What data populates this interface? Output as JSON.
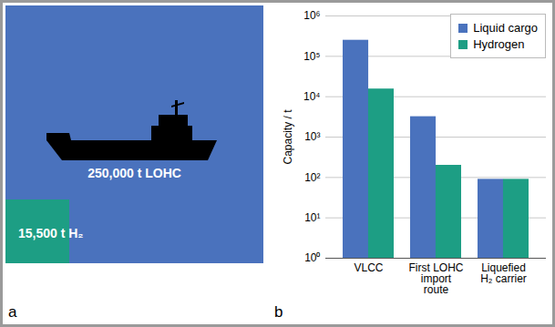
{
  "panel_a": {
    "panel_label": "a",
    "lohc": {
      "value": 250000,
      "label": "250,000 t LOHC",
      "color": "#4a72bd"
    },
    "hydrogen": {
      "value": 15500,
      "label": "15,500 t H₂",
      "color": "#1d9e84"
    }
  },
  "chart_data": {
    "type": "bar",
    "panel_label": "b",
    "categories": [
      "VLCC",
      "First LOHC import route",
      "Liquefied H₂ carrier"
    ],
    "series": [
      {
        "name": "Liquid cargo",
        "color": "#4a72bd",
        "values": [
          250000,
          3200,
          90
        ]
      },
      {
        "name": "Hydrogen",
        "color": "#1d9e84",
        "values": [
          15500,
          200,
          90
        ]
      }
    ],
    "ylabel": "Capacity / t",
    "log": "y",
    "ylim": [
      1,
      1000000
    ],
    "yticks": [
      {
        "value": 1,
        "label": "10⁰"
      },
      {
        "value": 10,
        "label": "10¹"
      },
      {
        "value": 100,
        "label": "10²"
      },
      {
        "value": 1000,
        "label": "10³"
      },
      {
        "value": 10000,
        "label": "10⁴"
      },
      {
        "value": 100000,
        "label": "10⁵"
      },
      {
        "value": 1000000,
        "label": "10⁶"
      }
    ],
    "grid": true,
    "legend": "top-right"
  }
}
